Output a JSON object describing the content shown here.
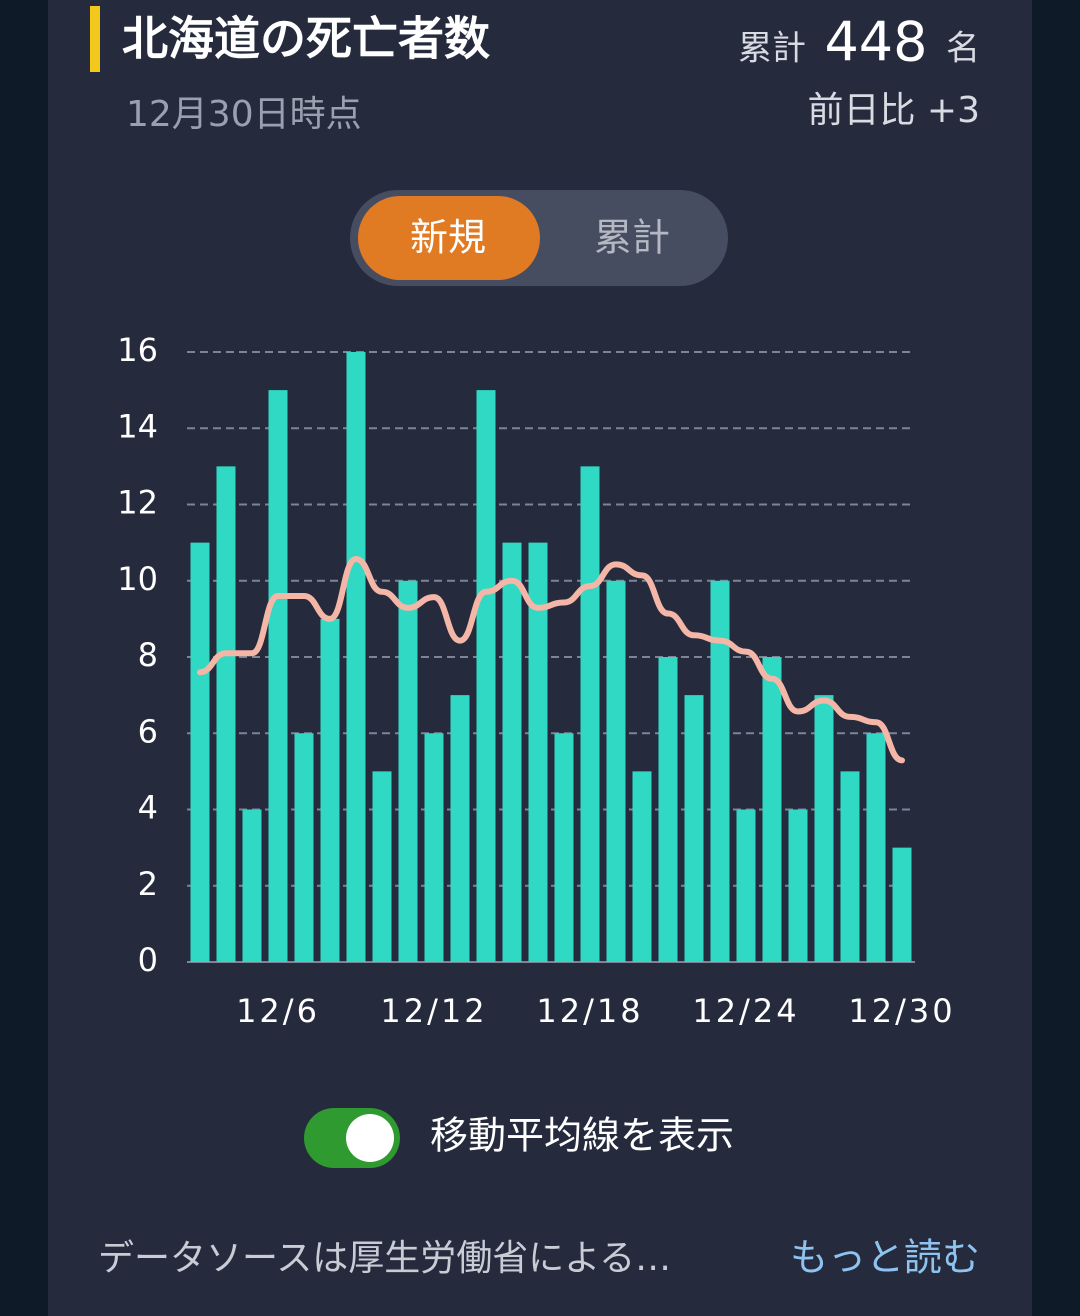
{
  "header": {
    "title": "北海道の死亡者数",
    "date": "12月30日時点",
    "total_label": "累計",
    "total": "448",
    "total_unit": "名",
    "diff": "前日比 +3"
  },
  "tabs": [
    "新規",
    "累計"
  ],
  "toggle_label": "移動平均線を表示",
  "footer": {
    "source": "データソースは厚生労働省による…",
    "more": "もっと読む"
  },
  "chart_data": {
    "type": "bar",
    "categories": [
      null,
      null,
      null,
      "12/6",
      null,
      null,
      null,
      null,
      null,
      "12/12",
      null,
      null,
      null,
      null,
      null,
      "12/18",
      null,
      null,
      null,
      null,
      null,
      "12/24",
      null,
      null,
      null,
      null,
      null,
      "12/30"
    ],
    "series": [
      {
        "color": "#2fd9c4",
        "values": [
          11,
          13,
          4,
          15,
          6,
          9,
          16,
          5,
          10,
          6,
          7,
          15,
          11,
          11,
          6,
          13,
          10,
          5,
          8,
          7,
          10,
          4,
          8,
          4,
          7,
          5,
          6,
          3
        ]
      },
      {
        "color": "#f4b6a6",
        "values": [
          7.6,
          8.1,
          8.1,
          9.6,
          9.6,
          9.0,
          10.57,
          9.71,
          9.29,
          9.57,
          8.43,
          9.71,
          10,
          9.29,
          9.43,
          9.86,
          10.43,
          10.14,
          9.14,
          8.57,
          8.43,
          8.14,
          7.43,
          6.57,
          6.86,
          6.43,
          6.29,
          5.29
        ]
      }
    ],
    "ylim": [
      0,
      16
    ],
    "yticks": [
      0,
      2,
      4,
      6,
      8,
      10,
      12,
      14,
      16
    ],
    "grid": true
  }
}
